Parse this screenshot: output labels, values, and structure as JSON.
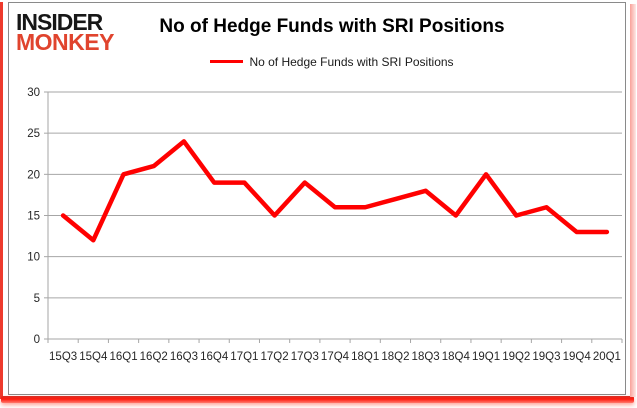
{
  "logo": {
    "line1": "INSIDER",
    "line2": "MONKEY",
    "line1_color": "#171717",
    "line2_color": "#e0442e"
  },
  "header": {
    "title": "No of Hedge Funds with SRI Positions"
  },
  "legend": {
    "label": "No of Hedge Funds with SRI Positions",
    "swatch_color": "#ff0000"
  },
  "chart_data": {
    "type": "line",
    "title": "No of Hedge Funds with SRI Positions",
    "categories": [
      "15Q3",
      "15Q4",
      "16Q1",
      "16Q2",
      "16Q3",
      "16Q4",
      "17Q1",
      "17Q2",
      "17Q3",
      "17Q4",
      "18Q1",
      "18Q2",
      "18Q3",
      "18Q4",
      "19Q1",
      "19Q2",
      "19Q3",
      "19Q4",
      "20Q1"
    ],
    "series": [
      {
        "name": "No of Hedge Funds with SRI Positions",
        "values": [
          15,
          12,
          20,
          21,
          24,
          19,
          19,
          15,
          19,
          16,
          16,
          17,
          18,
          15,
          20,
          15,
          16,
          13,
          13
        ]
      }
    ],
    "xlabel": "",
    "ylabel": "",
    "ylim": [
      0,
      30
    ],
    "ytick_step": 5,
    "yticks": [
      0,
      5,
      10,
      15,
      20,
      25,
      30
    ],
    "grid": true,
    "legend_position": "top-center",
    "line_color": "#ff0000",
    "gridline_color": "#a6a6a6",
    "axis_text_color": "#262626"
  }
}
